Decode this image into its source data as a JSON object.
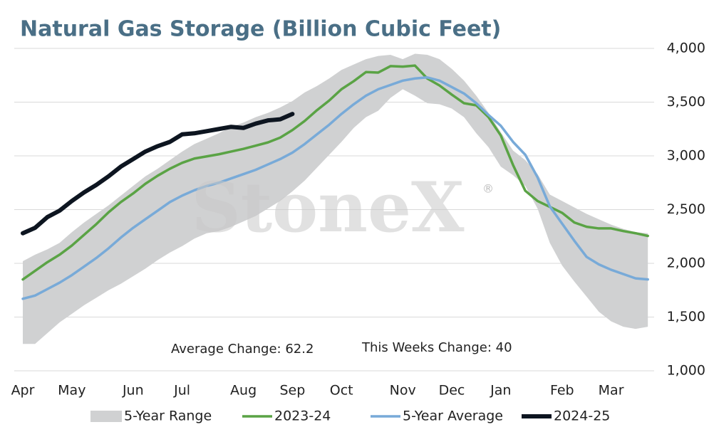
{
  "chart_data": {
    "type": "line",
    "title": "Natural Gas Storage (Billion Cubic Feet)",
    "watermark": "StoneX",
    "watermark_mark": "®",
    "annotations": [
      "Average Change: 62.2",
      "This Weeks Change: 40"
    ],
    "categories": [
      "Apr",
      null,
      null,
      null,
      "May",
      null,
      null,
      null,
      null,
      "Jun",
      null,
      null,
      null,
      "Jul",
      null,
      null,
      null,
      null,
      "Aug",
      null,
      null,
      null,
      "Sep",
      null,
      null,
      null,
      "Oct",
      null,
      null,
      null,
      null,
      "Nov",
      null,
      null,
      null,
      "Dec",
      null,
      null,
      null,
      "Jan",
      null,
      null,
      null,
      null,
      "Feb",
      null,
      null,
      null,
      "Mar",
      null,
      null,
      null
    ],
    "range": {
      "name": "5-Year Range",
      "color": "#d0d1d2",
      "high": [
        2020,
        2080,
        2130,
        2190,
        2290,
        2380,
        2460,
        2540,
        2630,
        2720,
        2810,
        2880,
        2960,
        3040,
        3110,
        3160,
        3210,
        3270,
        3310,
        3360,
        3400,
        3450,
        3510,
        3590,
        3650,
        3720,
        3800,
        3850,
        3900,
        3930,
        3940,
        3900,
        3950,
        3940,
        3900,
        3810,
        3700,
        3560,
        3400,
        3220,
        3050,
        2960,
        2830,
        2640,
        2580,
        2520,
        2460,
        2410,
        2360,
        2320,
        2290,
        2280
      ],
      "low": [
        1250,
        1250,
        1350,
        1450,
        1530,
        1610,
        1680,
        1750,
        1810,
        1880,
        1950,
        2030,
        2100,
        2160,
        2230,
        2280,
        2300,
        2340,
        2390,
        2440,
        2510,
        2580,
        2670,
        2770,
        2890,
        3010,
        3130,
        3260,
        3360,
        3420,
        3540,
        3620,
        3560,
        3490,
        3480,
        3440,
        3360,
        3210,
        3080,
        2900,
        2820,
        2720,
        2510,
        2190,
        1980,
        1830,
        1690,
        1550,
        1460,
        1410,
        1390,
        1410
      ]
    },
    "series": [
      {
        "name": "2023-24",
        "color": "#5aa345",
        "width": 3.5,
        "values": [
          1850,
          1930,
          2010,
          2080,
          2165,
          2265,
          2365,
          2475,
          2570,
          2650,
          2740,
          2815,
          2880,
          2935,
          2975,
          2995,
          3015,
          3040,
          3065,
          3095,
          3125,
          3170,
          3240,
          3325,
          3425,
          3515,
          3620,
          3695,
          3780,
          3775,
          3835,
          3830,
          3840,
          3720,
          3655,
          3570,
          3490,
          3470,
          3360,
          3190,
          2915,
          2675,
          2580,
          2525,
          2470,
          2380,
          2340,
          2325,
          2325,
          2300,
          2280,
          2255
        ]
      },
      {
        "name": "5-Year Average",
        "color": "#78aad8",
        "width": 3.5,
        "values": [
          1670,
          1700,
          1760,
          1820,
          1890,
          1970,
          2050,
          2140,
          2240,
          2330,
          2410,
          2490,
          2570,
          2630,
          2680,
          2720,
          2750,
          2790,
          2830,
          2870,
          2920,
          2970,
          3030,
          3110,
          3200,
          3290,
          3390,
          3480,
          3560,
          3620,
          3660,
          3700,
          3720,
          3730,
          3700,
          3640,
          3580,
          3490,
          3380,
          3280,
          3130,
          3010,
          2800,
          2530,
          2370,
          2210,
          2060,
          1990,
          1940,
          1900,
          1860,
          1850
        ]
      },
      {
        "name": "2024-25",
        "color": "#0d1520",
        "width": 6,
        "values": [
          2280,
          2330,
          2430,
          2490,
          2580,
          2660,
          2730,
          2810,
          2900,
          2970,
          3040,
          3090,
          3130,
          3200,
          3210,
          3230,
          3250,
          3270,
          3260,
          3300,
          3330,
          3340,
          3390,
          null,
          null,
          null,
          null,
          null,
          null,
          null,
          null,
          null,
          null,
          null,
          null,
          null,
          null,
          null,
          null,
          null,
          null,
          null,
          null,
          null,
          null,
          null,
          null,
          null,
          null,
          null,
          null,
          null
        ]
      }
    ],
    "ylim": [
      1000,
      4000
    ],
    "yticks": [
      {
        "value": 1000,
        "label": "1,000"
      },
      {
        "value": 1500,
        "label": "1,500"
      },
      {
        "value": 2000,
        "label": "2,000"
      },
      {
        "value": 2500,
        "label": "2,500"
      },
      {
        "value": 3000,
        "label": "3,000"
      },
      {
        "value": 3500,
        "label": "3,500"
      },
      {
        "value": 4000,
        "label": "4,000"
      }
    ],
    "grid": true
  }
}
